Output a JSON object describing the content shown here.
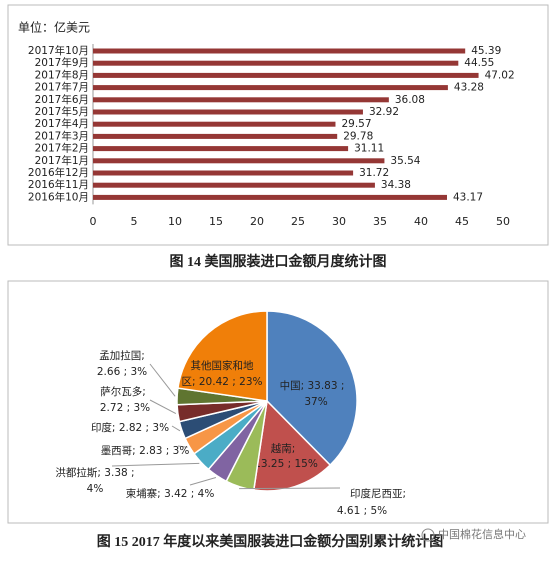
{
  "chart_data": [
    {
      "type": "hbar",
      "title": "图 14  美国服装进口金额月度统计图",
      "unit": "单位：亿美元",
      "categories": [
        "2017年10月",
        "2017年9月",
        "2017年8月",
        "2017年7月",
        "2017年6月",
        "2017年5月",
        "2017年4月",
        "2017年3月",
        "2017年2月",
        "2017年1月",
        "2016年12月",
        "2016年11月",
        "2016年10月"
      ],
      "values": [
        45.39,
        44.55,
        47.02,
        43.28,
        36.08,
        32.92,
        29.57,
        29.78,
        31.11,
        35.54,
        31.72,
        34.38,
        43.17
      ],
      "color": "#953735",
      "xlim": [
        0,
        50
      ],
      "xticks": [
        0,
        5,
        10,
        15,
        20,
        25,
        30,
        35,
        40,
        45,
        50
      ]
    },
    {
      "type": "pie",
      "title": "图 15 2017 年度以来美国服装进口金额分国别累计统计图",
      "categories": [
        "中国",
        "越南",
        "印度尼西亚",
        "柬埔寨",
        "洪都拉斯",
        "墨西哥",
        "印度",
        "萨尔瓦多",
        "孟加拉国",
        "其他国家和地区"
      ],
      "values": [
        33.83,
        13.25,
        4.61,
        3.42,
        3.38,
        2.83,
        2.82,
        2.72,
        2.66,
        20.42
      ],
      "percents": [
        37,
        15,
        5,
        4,
        4,
        3,
        3,
        3,
        3,
        23
      ],
      "value_labels": [
        [
          "中国; 33.83 ;",
          "37%"
        ],
        [
          "越南;",
          "13.25 ; 15%"
        ],
        [
          "印度尼西亚;",
          "4.61 ; 5%"
        ],
        [
          "柬埔寨; 3.42 ; 4%"
        ],
        [
          "洪都拉斯; 3.38 ;",
          "4%"
        ],
        [
          "墨西哥; 2.83 ; 3%"
        ],
        [
          "印度; 2.82 ; 3%"
        ],
        [
          "萨尔瓦多;",
          "2.72 ; 3%"
        ],
        [
          "孟加拉国;",
          "2.66 ; 3%"
        ],
        [
          "其他国家和地",
          "区; 20.42 ; 23%"
        ]
      ],
      "colors": [
        "#4f81bd",
        "#c0504d",
        "#9bbb59",
        "#8064a2",
        "#4bacc6",
        "#f79646",
        "#2c4d75",
        "#772c2a",
        "#5f7530",
        "#f07f09"
      ]
    }
  ],
  "watermark": "中国棉花信息中心"
}
